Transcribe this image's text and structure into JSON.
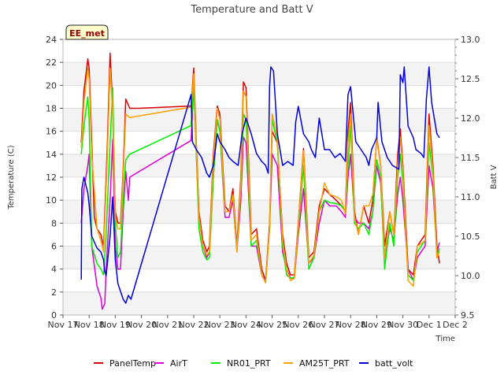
{
  "chart_data": {
    "type": "line",
    "title": "Temperature and Batt V",
    "xlabel": "Time",
    "ylabel": "Temperature (C)",
    "y2label": "Batt V",
    "badge": "EE_met",
    "xlim": [
      17,
      32
    ],
    "ylim": [
      0,
      24
    ],
    "y2lim": [
      9.5,
      13.0
    ],
    "xticks": [
      17,
      18,
      19,
      20,
      21,
      22,
      23,
      24,
      25,
      26,
      27,
      28,
      29,
      30,
      31,
      32
    ],
    "xtick_labels": [
      "Nov 17",
      "Nov 18",
      "Nov 19",
      "Nov 20",
      "Nov 21",
      "Nov 22",
      "Nov 23",
      "Nov 24",
      "Nov 25",
      "Nov 26",
      "Nov 27",
      "Nov 28",
      "Nov 29",
      "Nov 30",
      "Dec 1",
      "Dec 2"
    ],
    "yticks": [
      0,
      2,
      4,
      6,
      8,
      10,
      12,
      14,
      16,
      18,
      20,
      22,
      24
    ],
    "y2ticks": [
      9.5,
      10.0,
      10.5,
      11.0,
      11.5,
      12.0,
      12.5,
      13.0
    ],
    "y2tick_labels": [
      "9.5",
      "10.0",
      "10.5",
      "11.0",
      "11.5",
      "12.0",
      "12.5",
      "13.0"
    ],
    "grid": "horizontal bands",
    "legend_position": "bottom",
    "series": [
      {
        "name": "PanelTemp",
        "color": "#dd0000",
        "axis": "left",
        "x": [
          17.7,
          17.8,
          17.95,
          18.0,
          18.1,
          18.2,
          18.3,
          18.45,
          18.55,
          18.7,
          18.8,
          18.9,
          19.0,
          19.1,
          19.2,
          19.3,
          19.4,
          19.55,
          19.7,
          19.8,
          19.9,
          21.9,
          22.0,
          22.1,
          22.2,
          22.35,
          22.5,
          22.6,
          22.75,
          22.9,
          23.0,
          23.2,
          23.35,
          23.5,
          23.65,
          23.8,
          23.9,
          24.0,
          24.2,
          24.4,
          24.6,
          24.75,
          24.9,
          25.0,
          25.2,
          25.4,
          25.55,
          25.7,
          25.85,
          26.0,
          26.2,
          26.4,
          26.6,
          26.8,
          27.0,
          27.2,
          27.45,
          27.65,
          27.8,
          27.9,
          28.0,
          28.15,
          28.3,
          28.5,
          28.7,
          28.85,
          29.0,
          29.15,
          29.3,
          29.5,
          29.65,
          29.8,
          29.9,
          30.0,
          30.2,
          30.4,
          30.55,
          30.7,
          30.85,
          31.0,
          31.15,
          31.3,
          31.4
        ],
        "y": [
          15.0,
          19.5,
          22.3,
          21.5,
          15.0,
          8.5,
          7.5,
          7.0,
          6.0,
          15.0,
          22.8,
          18.0,
          9.0,
          8.0,
          8.0,
          12.5,
          18.8,
          18.0,
          18.0,
          18.0,
          18.0,
          18.2,
          21.5,
          15.0,
          9.0,
          6.5,
          5.5,
          6.0,
          14.0,
          18.2,
          17.5,
          9.5,
          9.0,
          11.0,
          6.0,
          12.0,
          20.3,
          19.8,
          7.0,
          7.5,
          4.0,
          3.0,
          8.0,
          16.0,
          15.0,
          7.0,
          4.5,
          3.5,
          3.5,
          8.0,
          14.5,
          5.0,
          5.5,
          9.5,
          11.0,
          10.5,
          10.0,
          9.5,
          9.0,
          16.0,
          18.5,
          9.0,
          7.0,
          9.5,
          8.0,
          10.0,
          15.5,
          13.0,
          6.0,
          9.0,
          7.0,
          14.0,
          16.2,
          13.0,
          4.0,
          3.5,
          6.0,
          6.5,
          7.0,
          17.5,
          13.0,
          6.0,
          4.5
        ]
      },
      {
        "name": "AirT",
        "color": "#dd00dd",
        "axis": "left",
        "x": [
          17.7,
          17.8,
          17.95,
          18.0,
          18.1,
          18.3,
          18.45,
          18.5,
          18.6,
          18.65,
          18.8,
          18.9,
          19.0,
          19.1,
          19.2,
          19.3,
          19.4,
          19.5,
          19.55,
          21.9,
          22.0,
          22.1,
          22.2,
          22.35,
          22.5,
          22.6,
          22.75,
          22.9,
          23.0,
          23.2,
          23.35,
          23.5,
          23.65,
          23.8,
          23.9,
          24.0,
          24.2,
          24.4,
          24.6,
          24.75,
          24.9,
          25.0,
          25.2,
          25.4,
          25.55,
          25.7,
          25.85,
          26.0,
          26.2,
          26.4,
          26.6,
          26.8,
          27.0,
          27.2,
          27.45,
          27.65,
          27.8,
          27.9,
          28.0,
          28.15,
          28.3,
          28.5,
          28.7,
          28.85,
          29.0,
          29.15,
          29.3,
          29.5,
          29.65,
          29.8,
          29.9,
          30.0,
          30.2,
          30.4,
          30.55,
          30.7,
          30.85,
          31.0,
          31.15,
          31.3,
          31.4
        ],
        "y": [
          8.0,
          11.0,
          13.0,
          14.0,
          6.0,
          2.5,
          1.5,
          0.5,
          1.0,
          4.0,
          10.0,
          15.3,
          6.0,
          4.0,
          4.0,
          9.0,
          12.5,
          10.0,
          12.0,
          15.2,
          20.0,
          14.0,
          8.5,
          6.0,
          5.0,
          5.5,
          12.0,
          17.0,
          16.0,
          8.5,
          8.5,
          10.0,
          5.5,
          10.0,
          15.5,
          15.0,
          6.0,
          6.0,
          3.5,
          3.0,
          7.5,
          14.0,
          13.0,
          5.5,
          4.0,
          3.2,
          3.2,
          7.0,
          11.0,
          4.5,
          5.0,
          8.0,
          10.0,
          9.5,
          9.5,
          9.0,
          8.5,
          12.0,
          14.0,
          8.5,
          8.0,
          8.0,
          7.5,
          9.0,
          13.0,
          11.5,
          5.0,
          7.5,
          6.5,
          10.5,
          12.0,
          10.0,
          4.0,
          3.0,
          5.0,
          5.5,
          6.0,
          13.0,
          11.0,
          5.5,
          6.3
        ]
      },
      {
        "name": "NR01_PRT",
        "color": "#00ee00",
        "axis": "left",
        "x": [
          17.7,
          17.8,
          17.95,
          18.0,
          18.1,
          18.3,
          18.45,
          18.55,
          18.65,
          18.8,
          18.9,
          19.0,
          19.1,
          19.2,
          19.3,
          19.4,
          19.55,
          21.9,
          22.0,
          22.1,
          22.2,
          22.35,
          22.5,
          22.6,
          22.75,
          22.9,
          23.0,
          23.2,
          23.35,
          23.5,
          23.65,
          23.8,
          23.9,
          24.0,
          24.2,
          24.4,
          24.6,
          24.75,
          24.9,
          25.0,
          25.2,
          25.4,
          25.55,
          25.7,
          25.85,
          26.0,
          26.2,
          26.4,
          26.6,
          26.8,
          27.0,
          27.2,
          27.45,
          27.65,
          27.8,
          27.9,
          28.0,
          28.15,
          28.3,
          28.5,
          28.7,
          28.85,
          29.0,
          29.15,
          29.3,
          29.5,
          29.65,
          29.8,
          29.9,
          30.0,
          30.2,
          30.4,
          30.55,
          30.7,
          30.85,
          31.0,
          31.15,
          31.3,
          31.4
        ],
        "y": [
          14.0,
          16.5,
          19.0,
          17.0,
          6.0,
          4.5,
          4.0,
          3.5,
          7.0,
          15.0,
          19.8,
          8.0,
          5.0,
          5.5,
          10.0,
          13.5,
          14.0,
          16.5,
          20.0,
          14.0,
          7.5,
          5.5,
          4.8,
          5.0,
          12.0,
          17.0,
          16.0,
          9.0,
          9.0,
          10.5,
          5.8,
          11.0,
          17.5,
          17.0,
          6.0,
          6.5,
          3.5,
          2.8,
          7.5,
          17.0,
          15.0,
          6.0,
          3.5,
          3.2,
          3.3,
          7.5,
          13.0,
          4.0,
          5.0,
          9.0,
          10.0,
          9.8,
          9.7,
          9.5,
          9.0,
          13.0,
          16.5,
          8.0,
          7.5,
          8.0,
          7.0,
          9.0,
          13.5,
          12.0,
          4.0,
          8.0,
          6.0,
          12.0,
          14.0,
          11.5,
          3.5,
          3.0,
          5.5,
          6.0,
          6.5,
          15.0,
          12.0,
          5.0,
          5.8
        ]
      },
      {
        "name": "AM25T_PRT",
        "color": "#ffa000",
        "axis": "left",
        "x": [
          17.7,
          17.8,
          17.95,
          18.0,
          18.1,
          18.3,
          18.45,
          18.55,
          18.7,
          18.8,
          18.9,
          19.0,
          19.1,
          19.2,
          19.3,
          19.4,
          19.55,
          21.9,
          22.0,
          22.1,
          22.2,
          22.35,
          22.5,
          22.6,
          22.75,
          22.9,
          23.0,
          23.2,
          23.35,
          23.5,
          23.65,
          23.8,
          23.9,
          24.0,
          24.2,
          24.4,
          24.6,
          24.75,
          24.9,
          25.0,
          25.2,
          25.4,
          25.55,
          25.7,
          25.85,
          26.0,
          26.2,
          26.4,
          26.6,
          26.8,
          27.0,
          27.2,
          27.45,
          27.65,
          27.8,
          27.9,
          28.0,
          28.15,
          28.3,
          28.5,
          28.7,
          28.85,
          29.0,
          29.15,
          29.3,
          29.5,
          29.65,
          29.8,
          29.9,
          30.0,
          30.2,
          30.4,
          30.55,
          30.7,
          30.85,
          31.0,
          31.15,
          31.3,
          31.4
        ],
        "y": [
          14.5,
          18.5,
          21.5,
          20.5,
          14.0,
          7.5,
          6.5,
          5.5,
          14.0,
          21.5,
          17.5,
          8.5,
          7.5,
          7.5,
          12.0,
          17.5,
          17.2,
          18.1,
          21.0,
          14.5,
          8.5,
          6.0,
          5.2,
          5.5,
          13.5,
          18.0,
          17.0,
          9.0,
          9.0,
          10.5,
          5.5,
          11.5,
          19.5,
          19.0,
          6.5,
          7.0,
          3.5,
          2.8,
          7.5,
          17.5,
          15.5,
          6.5,
          4.0,
          3.0,
          3.2,
          7.8,
          14.3,
          4.5,
          5.2,
          9.0,
          11.5,
          10.5,
          10.3,
          10.0,
          8.8,
          15.0,
          17.5,
          8.5,
          7.0,
          9.5,
          9.5,
          10.5,
          15.3,
          13.0,
          5.0,
          9.0,
          7.0,
          13.0,
          15.5,
          12.5,
          3.0,
          2.5,
          6.0,
          6.2,
          6.5,
          16.5,
          12.5,
          5.0,
          5.5
        ]
      },
      {
        "name": "batt_volt",
        "color": "#0000dd",
        "axis": "right",
        "x": [
          17.7,
          17.72,
          17.8,
          17.95,
          18.0,
          18.1,
          18.3,
          18.45,
          18.55,
          18.6,
          18.65,
          18.8,
          18.9,
          19.0,
          19.1,
          19.3,
          19.4,
          19.5,
          19.6,
          21.9,
          21.95,
          22.1,
          22.3,
          22.5,
          22.6,
          22.75,
          22.9,
          23.0,
          23.2,
          23.35,
          23.5,
          23.7,
          23.85,
          24.0,
          24.2,
          24.4,
          24.6,
          24.75,
          24.85,
          24.9,
          24.95,
          25.05,
          25.2,
          25.4,
          25.6,
          25.8,
          25.9,
          26.0,
          26.2,
          26.4,
          26.5,
          26.65,
          26.8,
          27.0,
          27.2,
          27.4,
          27.6,
          27.8,
          27.9,
          28.0,
          28.2,
          28.4,
          28.6,
          28.7,
          28.8,
          29.0,
          29.05,
          29.2,
          29.4,
          29.6,
          29.85,
          29.9,
          30.0,
          30.05,
          30.2,
          30.4,
          30.5,
          30.7,
          30.8,
          30.9,
          31.0,
          31.1,
          31.3,
          31.4
        ],
        "y": [
          9.95,
          11.1,
          11.25,
          11.05,
          10.9,
          10.5,
          10.35,
          10.3,
          10.2,
          10.05,
          10.0,
          10.5,
          11.0,
          10.2,
          9.9,
          9.7,
          9.65,
          9.75,
          9.7,
          12.3,
          11.7,
          11.6,
          11.5,
          11.3,
          11.25,
          11.4,
          11.8,
          11.7,
          11.6,
          11.5,
          11.45,
          11.4,
          11.8,
          12.0,
          11.8,
          11.55,
          11.45,
          11.4,
          11.3,
          12.4,
          12.65,
          12.6,
          11.8,
          11.4,
          11.45,
          11.4,
          11.95,
          12.15,
          11.8,
          11.7,
          11.6,
          11.5,
          12.0,
          11.6,
          11.6,
          11.5,
          11.55,
          11.45,
          12.3,
          12.4,
          11.7,
          11.6,
          11.5,
          11.4,
          11.6,
          11.75,
          12.2,
          11.7,
          11.5,
          11.4,
          11.35,
          12.55,
          12.45,
          12.65,
          11.9,
          11.75,
          11.6,
          11.55,
          11.5,
          12.25,
          12.65,
          12.2,
          11.8,
          11.75
        ]
      }
    ]
  }
}
